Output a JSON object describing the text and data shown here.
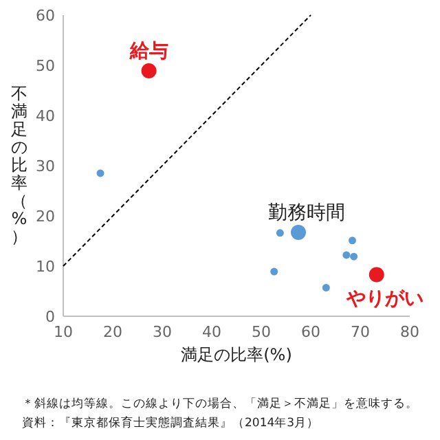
{
  "chart_data": {
    "type": "bubble",
    "xlabel": "満足の比率(%)",
    "ylabel": "不満足の比率（%）",
    "xlim": [
      10,
      80
    ],
    "ylim": [
      0,
      60
    ],
    "xticks": [
      10,
      20,
      30,
      40,
      50,
      60,
      70,
      80
    ],
    "yticks": [
      0,
      10,
      20,
      30,
      40,
      50,
      60
    ],
    "grid": false,
    "series": [
      {
        "color": "#5b9bd5",
        "x": [
          17.5,
          53.8,
          68.4,
          67.2,
          68.7,
          52.6,
          63.1
        ],
        "values": [
          28.5,
          16.6,
          15.1,
          12.2,
          11.9,
          8.9,
          5.7
        ],
        "sizes": [
          0.25,
          0.25,
          0.25,
          0.25,
          0.25,
          0.25,
          0.25
        ]
      },
      {
        "name": "勤務時間",
        "color": "#5b9bd5",
        "x": [
          57.5
        ],
        "values": [
          16.7
        ],
        "sizes": [
          1
        ]
      },
      {
        "name": "給与",
        "color": "#e8191f",
        "x": [
          27.3
        ],
        "values": [
          48.9
        ],
        "sizes": [
          1
        ]
      },
      {
        "name": "やりがい",
        "color": "#e8191f",
        "x": [
          73.3
        ],
        "values": [
          8.3
        ],
        "sizes": [
          1
        ]
      },
      {
        "type": "line",
        "color": "#000000",
        "line_style": "dashed",
        "x": [
          10,
          60
        ],
        "values": [
          10,
          60
        ]
      }
    ],
    "annotations": [
      "＊斜線は均等線。この線より下の場合、「満足＞不満足」を意味する。",
      "資料：『東京都保育士実態調査結果』（2014年3月）"
    ]
  }
}
